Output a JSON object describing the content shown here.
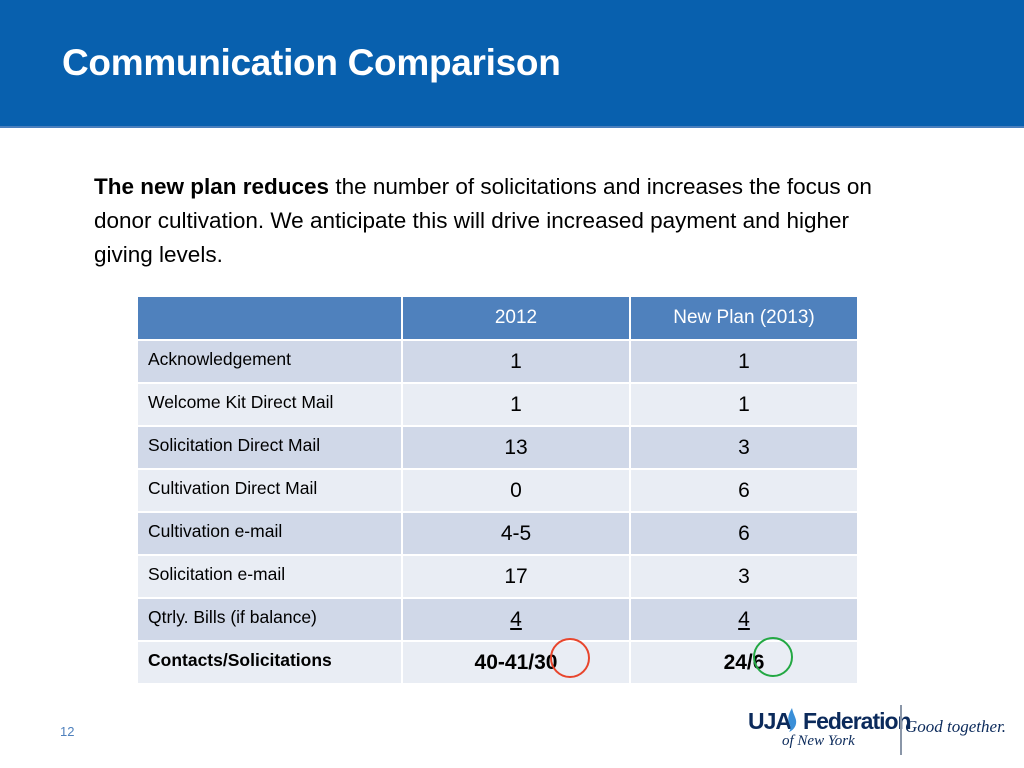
{
  "slide": {
    "title": "Communication Comparison",
    "intro_bold": "The new plan reduces",
    "intro_rest": " the number of solicitations and increases the focus on donor cultivation.  We anticipate this will drive increased payment and higher giving levels.",
    "page_number": "12"
  },
  "table": {
    "headers": [
      "",
      "2012",
      "New Plan (2013)"
    ],
    "rows": [
      {
        "label": "Acknowledgement",
        "y2012": "1",
        "plan2013": "1"
      },
      {
        "label": "Welcome Kit Direct Mail",
        "y2012": "1",
        "plan2013": "1"
      },
      {
        "label": "Solicitation Direct Mail",
        "y2012": "13",
        "plan2013": "3"
      },
      {
        "label": "Cultivation Direct Mail",
        "y2012": "0",
        "plan2013": "6"
      },
      {
        "label": "Cultivation e-mail",
        "y2012": "4-5",
        "plan2013": "6"
      },
      {
        "label": "Solicitation e-mail",
        "y2012": "17",
        "plan2013": "3"
      },
      {
        "label": "Qtrly. Bills (if balance)",
        "y2012": "4",
        "plan2013": "4"
      },
      {
        "label": "Contacts/Solicitations",
        "y2012": "40-41/30",
        "plan2013": "24/6"
      }
    ]
  },
  "logo": {
    "brand_left": "UJA",
    "brand_right": "Federation",
    "sub": "of New York",
    "tagline": "Good together."
  },
  "colors": {
    "title_bar": "#0860ae",
    "header_cell": "#4f81bd",
    "row_dark": "#d0d8e8",
    "row_light": "#e9edf4",
    "circle_red": "#e8452c",
    "circle_green": "#23a843"
  }
}
